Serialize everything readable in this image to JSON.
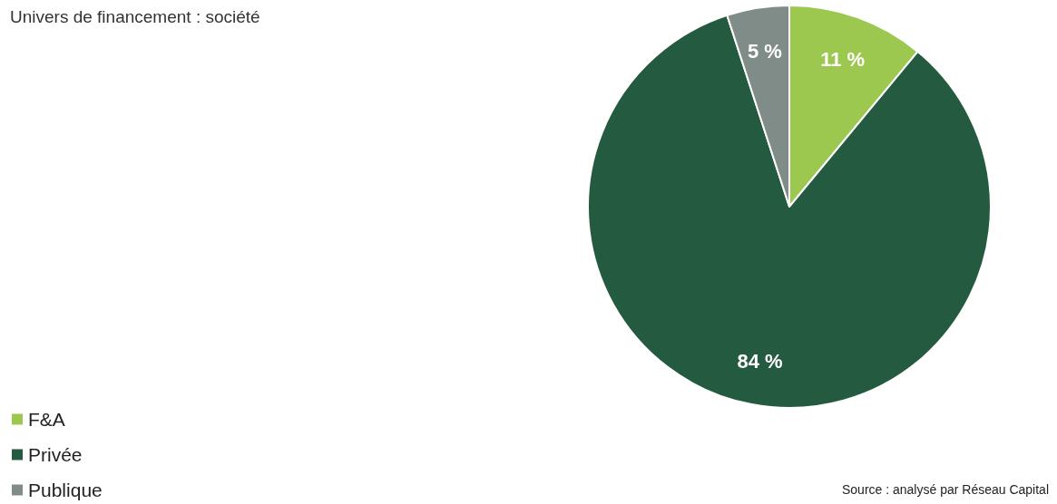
{
  "chart_data": {
    "type": "pie",
    "title": "Univers de financement : société",
    "categories": [
      "F&A",
      "Privée",
      "Publique"
    ],
    "values": [
      11,
      84,
      5
    ],
    "colors": [
      "#9dc850",
      "#245b40",
      "#7f8c88"
    ],
    "value_labels": [
      "11 %",
      "84 %",
      "5 %"
    ],
    "legend": "bottom left",
    "annotations": [
      "Source : analysé par Réseau Capital"
    ]
  }
}
